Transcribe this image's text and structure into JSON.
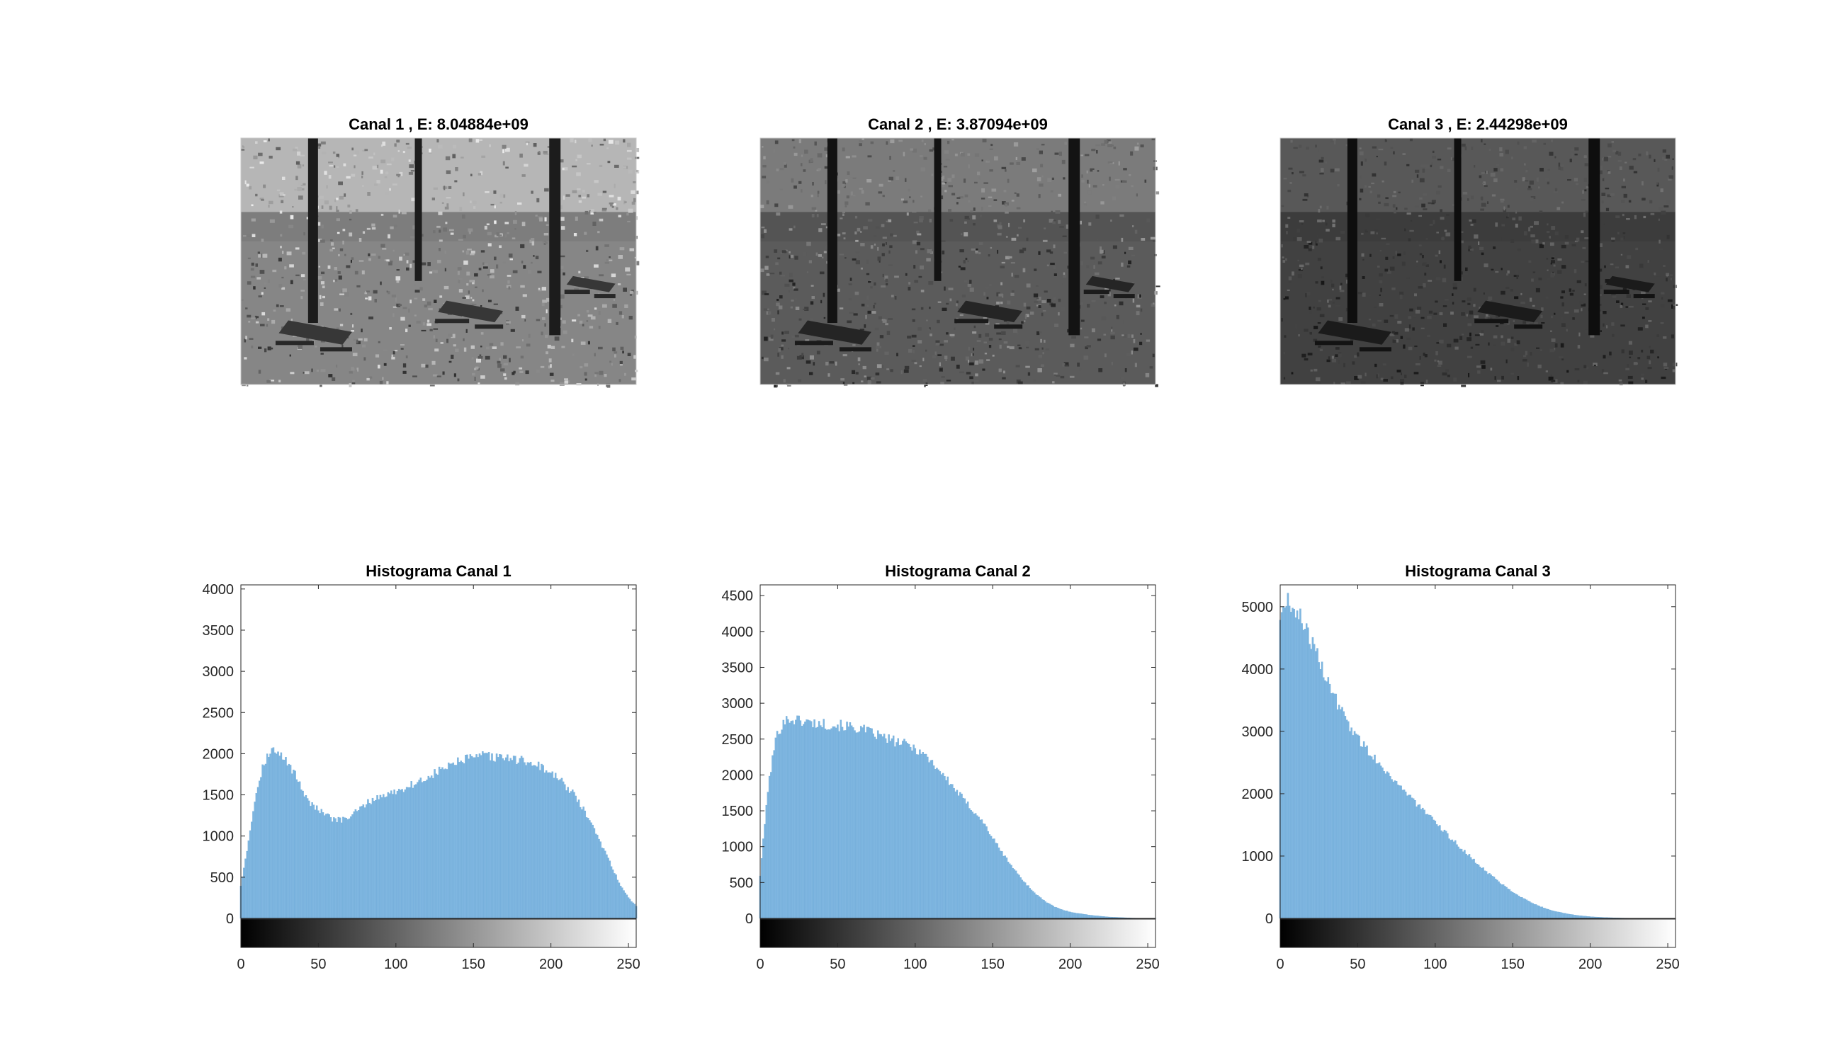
{
  "images": [
    {
      "title": "Canal 1 , E: 8.04884e+09",
      "brightness": 0.62,
      "contrast": 0.9,
      "seed": 11
    },
    {
      "title": "Canal 2 , E: 3.87094e+09",
      "brightness": 0.42,
      "contrast": 1.0,
      "seed": 23
    },
    {
      "title": "Canal 3 , E: 2.44298e+09",
      "brightness": 0.3,
      "contrast": 1.05,
      "seed": 37
    }
  ],
  "chart_data": [
    {
      "type": "bar",
      "title": "Histograma Canal 1",
      "xlim": [
        0,
        255
      ],
      "ylim": [
        0,
        4050
      ],
      "xticks": [
        0,
        50,
        100,
        150,
        200,
        250
      ],
      "yticks": [
        0,
        500,
        1000,
        1500,
        2000,
        2500,
        3000,
        3500,
        4000
      ],
      "x": [
        0,
        5,
        10,
        15,
        20,
        25,
        30,
        35,
        40,
        45,
        50,
        55,
        60,
        65,
        70,
        75,
        80,
        85,
        90,
        95,
        100,
        105,
        110,
        115,
        120,
        125,
        130,
        135,
        140,
        145,
        150,
        155,
        160,
        165,
        170,
        175,
        180,
        185,
        190,
        195,
        200,
        205,
        210,
        215,
        220,
        225,
        230,
        235,
        240,
        245,
        250,
        255
      ],
      "values": [
        400,
        950,
        1550,
        1900,
        2050,
        1980,
        1900,
        1750,
        1550,
        1400,
        1320,
        1250,
        1200,
        1190,
        1230,
        1300,
        1380,
        1440,
        1480,
        1510,
        1540,
        1580,
        1620,
        1660,
        1700,
        1760,
        1810,
        1860,
        1900,
        1930,
        1950,
        1970,
        1970,
        1950,
        1950,
        1940,
        1920,
        1900,
        1880,
        1820,
        1760,
        1690,
        1600,
        1500,
        1350,
        1180,
        1000,
        800,
        600,
        400,
        250,
        150
      ],
      "colorbar": true
    },
    {
      "type": "bar",
      "title": "Histograma Canal 2",
      "xlim": [
        0,
        255
      ],
      "ylim": [
        0,
        4650
      ],
      "xticks": [
        0,
        50,
        100,
        150,
        200,
        250
      ],
      "yticks": [
        0,
        500,
        1000,
        1500,
        2000,
        2500,
        3000,
        3500,
        4000,
        4500
      ],
      "x": [
        0,
        5,
        10,
        15,
        20,
        25,
        30,
        35,
        40,
        45,
        50,
        55,
        60,
        65,
        70,
        75,
        80,
        85,
        90,
        95,
        100,
        105,
        110,
        115,
        120,
        125,
        130,
        135,
        140,
        145,
        150,
        155,
        160,
        165,
        170,
        175,
        180,
        185,
        190,
        195,
        200,
        205,
        210,
        215,
        220,
        225,
        230,
        235,
        240,
        245,
        250,
        255
      ],
      "values": [
        600,
        1800,
        2500,
        2750,
        2780,
        2760,
        2740,
        2720,
        2710,
        2700,
        2690,
        2680,
        2660,
        2640,
        2600,
        2560,
        2520,
        2480,
        2450,
        2420,
        2370,
        2300,
        2200,
        2080,
        1950,
        1820,
        1690,
        1560,
        1450,
        1300,
        1120,
        950,
        800,
        650,
        520,
        400,
        300,
        220,
        160,
        120,
        90,
        70,
        55,
        40,
        30,
        20,
        15,
        10,
        5,
        3,
        2,
        1
      ],
      "colorbar": true
    },
    {
      "type": "bar",
      "title": "Histograma Canal 3",
      "xlim": [
        0,
        255
      ],
      "ylim": [
        0,
        5350
      ],
      "xticks": [
        0,
        50,
        100,
        150,
        200,
        250
      ],
      "yticks": [
        0,
        1000,
        2000,
        3000,
        4000,
        5000
      ],
      "x": [
        0,
        5,
        10,
        15,
        20,
        25,
        30,
        35,
        40,
        45,
        50,
        55,
        60,
        65,
        70,
        75,
        80,
        85,
        90,
        95,
        100,
        105,
        110,
        115,
        120,
        125,
        130,
        135,
        140,
        145,
        150,
        155,
        160,
        165,
        170,
        175,
        180,
        185,
        190,
        195,
        200,
        205,
        210,
        215,
        220,
        225,
        230,
        235,
        240,
        245,
        250,
        255
      ],
      "values": [
        4850,
        5100,
        4950,
        4750,
        4450,
        4150,
        3850,
        3550,
        3300,
        3080,
        2900,
        2740,
        2600,
        2460,
        2320,
        2180,
        2050,
        1920,
        1790,
        1660,
        1530,
        1410,
        1290,
        1170,
        1050,
        930,
        820,
        710,
        610,
        520,
        430,
        350,
        280,
        220,
        170,
        130,
        100,
        75,
        55,
        40,
        28,
        20,
        14,
        10,
        6,
        4,
        3,
        2,
        1,
        1,
        0,
        0
      ],
      "colorbar": true
    }
  ],
  "style": {
    "bar_color": "#7fb6e0",
    "bar_edge": "#6aa7d6",
    "axis_color": "#262626"
  }
}
